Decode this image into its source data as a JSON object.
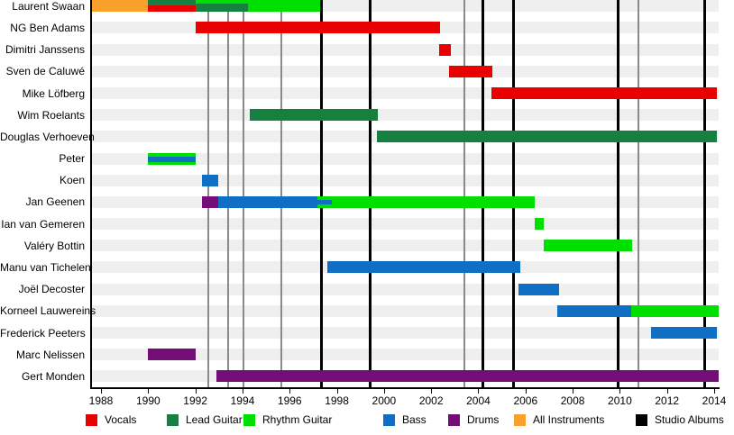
{
  "chart_data": {
    "type": "bar",
    "variant": "band-membership-timeline-gantt",
    "title": "",
    "xlabel": "",
    "ylabel": "",
    "grid": "vertical release lines only",
    "x_axis": {
      "min": 1987.54,
      "max": 2014.19,
      "tick_years": [
        1988,
        1990,
        1992,
        1994,
        1996,
        1998,
        2000,
        2002,
        2004,
        2006,
        2008,
        2010,
        2012,
        2014
      ]
    },
    "roles": {
      "vocals": {
        "label": "Vocals",
        "color": "#e90000"
      },
      "lead_guitar": {
        "label": "Lead Guitar",
        "color": "#15803f"
      },
      "rhythm_guitar": {
        "label": "Rhythm Guitar",
        "color": "#00e000"
      },
      "bass": {
        "label": "Bass",
        "color": "#0e6fc5"
      },
      "drums": {
        "label": "Drums",
        "color": "#740d76"
      },
      "all_instruments": {
        "label": "All Instruments",
        "color": "#f9a02d"
      },
      "studio_albums": {
        "label": "Studio Albums",
        "color": "#000000"
      }
    },
    "legend_order": [
      "vocals",
      "lead_guitar",
      "rhythm_guitar",
      "bass",
      "drums",
      "all_instruments",
      "studio_albums"
    ],
    "legend_x": [
      95,
      185,
      270,
      425,
      497,
      570,
      705
    ],
    "line_colors": {
      "studio_albums": "#000000",
      "other_releases": "#8a8a8a"
    },
    "release_lines": {
      "studio_albums": [
        1997.33,
        1999.4,
        2004.18,
        2005.48,
        2009.91,
        2013.58
      ],
      "other_releases": [
        1992.55,
        1993.39,
        1994.04,
        1995.65,
        2003.41,
        2010.79
      ]
    },
    "members": [
      {
        "name": "Laurent Swaan",
        "segments": [
          {
            "from": 1987.54,
            "to": 1990.0,
            "stripes": [
              {
                "role": "all_instruments",
                "w": 1
              }
            ]
          },
          {
            "from": 1990.0,
            "to": 1992.0,
            "stripes": [
              {
                "role": "lead_guitar",
                "w": 6
              },
              {
                "role": "vocals",
                "w": 7
              }
            ]
          },
          {
            "from": 1992.0,
            "to": 1994.25,
            "stripes": [
              {
                "role": "rhythm_guitar",
                "w": 4
              },
              {
                "role": "lead_guitar",
                "w": 9
              }
            ]
          },
          {
            "from": 1994.25,
            "to": 1997.3,
            "stripes": [
              {
                "role": "rhythm_guitar",
                "w": 1
              }
            ]
          }
        ]
      },
      {
        "name": "NG Ben Adams",
        "segments": [
          {
            "from": 1992.0,
            "to": 2002.38,
            "stripes": [
              {
                "role": "vocals",
                "w": 1
              }
            ]
          }
        ]
      },
      {
        "name": "Dimitri Janssens",
        "segments": [
          {
            "from": 2002.34,
            "to": 2002.84,
            "stripes": [
              {
                "role": "vocals",
                "w": 1
              }
            ]
          }
        ]
      },
      {
        "name": "Sven de Caluwé",
        "segments": [
          {
            "from": 2002.76,
            "to": 2004.6,
            "stripes": [
              {
                "role": "vocals",
                "w": 1
              }
            ]
          }
        ]
      },
      {
        "name": "Mike Löfberg",
        "segments": [
          {
            "from": 2004.56,
            "to": 2014.12,
            "stripes": [
              {
                "role": "vocals",
                "w": 1
              }
            ]
          }
        ]
      },
      {
        "name": "Wim Roelants",
        "segments": [
          {
            "from": 1994.31,
            "to": 1999.74,
            "stripes": [
              {
                "role": "lead_guitar",
                "w": 1
              }
            ]
          }
        ]
      },
      {
        "name": "Douglas Verhoeven",
        "segments": [
          {
            "from": 1999.7,
            "to": 2014.12,
            "stripes": [
              {
                "role": "lead_guitar",
                "w": 1
              }
            ]
          }
        ]
      },
      {
        "name": "Peter",
        "segments": [
          {
            "from": 1990.0,
            "to": 1992.0,
            "stripes": [
              {
                "role": "rhythm_guitar",
                "w": 4
              },
              {
                "role": "bass",
                "w": 6
              },
              {
                "role": "rhythm_guitar",
                "w": 3
              }
            ]
          }
        ]
      },
      {
        "name": "Koen",
        "segments": [
          {
            "from": 1992.28,
            "to": 1992.97,
            "stripes": [
              {
                "role": "bass",
                "w": 1
              }
            ]
          }
        ]
      },
      {
        "name": "Jan Geenen",
        "segments": [
          {
            "from": 1992.28,
            "to": 1992.97,
            "stripes": [
              {
                "role": "drums",
                "w": 1
              }
            ]
          },
          {
            "from": 1992.97,
            "to": 1997.18,
            "stripes": [
              {
                "role": "bass",
                "w": 1
              }
            ]
          },
          {
            "from": 1997.18,
            "to": 1997.79,
            "stripes": [
              {
                "role": "rhythm_guitar",
                "w": 4
              },
              {
                "role": "bass",
                "w": 5
              },
              {
                "role": "rhythm_guitar",
                "w": 4
              }
            ]
          },
          {
            "from": 1997.79,
            "to": 2006.4,
            "stripes": [
              {
                "role": "rhythm_guitar",
                "w": 1
              }
            ]
          }
        ]
      },
      {
        "name": "Ian van Gemeren",
        "segments": [
          {
            "from": 2006.4,
            "to": 2006.78,
            "stripes": [
              {
                "role": "rhythm_guitar",
                "w": 1
              }
            ]
          }
        ]
      },
      {
        "name": "Valéry Bottin",
        "segments": [
          {
            "from": 2006.78,
            "to": 2010.52,
            "stripes": [
              {
                "role": "rhythm_guitar",
                "w": 1
              }
            ]
          }
        ]
      },
      {
        "name": "Manu van Tichelen",
        "segments": [
          {
            "from": 1997.6,
            "to": 2005.78,
            "stripes": [
              {
                "role": "bass",
                "w": 1
              }
            ]
          }
        ]
      },
      {
        "name": "Joël Decoster",
        "segments": [
          {
            "from": 2005.7,
            "to": 2007.43,
            "stripes": [
              {
                "role": "bass",
                "w": 1
              }
            ]
          }
        ]
      },
      {
        "name": "Korneel Lauwereins",
        "segments": [
          {
            "from": 2007.35,
            "to": 2010.49,
            "stripes": [
              {
                "role": "bass",
                "w": 1
              }
            ]
          },
          {
            "from": 2010.49,
            "to": 2014.19,
            "stripes": [
              {
                "role": "rhythm_guitar",
                "w": 1
              }
            ]
          }
        ]
      },
      {
        "name": "Frederick Peeters",
        "segments": [
          {
            "from": 2011.33,
            "to": 2014.12,
            "stripes": [
              {
                "role": "bass",
                "w": 1
              }
            ]
          }
        ]
      },
      {
        "name": "Marc Nelissen",
        "segments": [
          {
            "from": 1990.0,
            "to": 1992.0,
            "stripes": [
              {
                "role": "drums",
                "w": 1
              }
            ]
          }
        ]
      },
      {
        "name": "Gert Monden",
        "segments": [
          {
            "from": 1992.9,
            "to": 2014.19,
            "stripes": [
              {
                "role": "drums",
                "w": 1
              }
            ]
          }
        ]
      }
    ]
  }
}
